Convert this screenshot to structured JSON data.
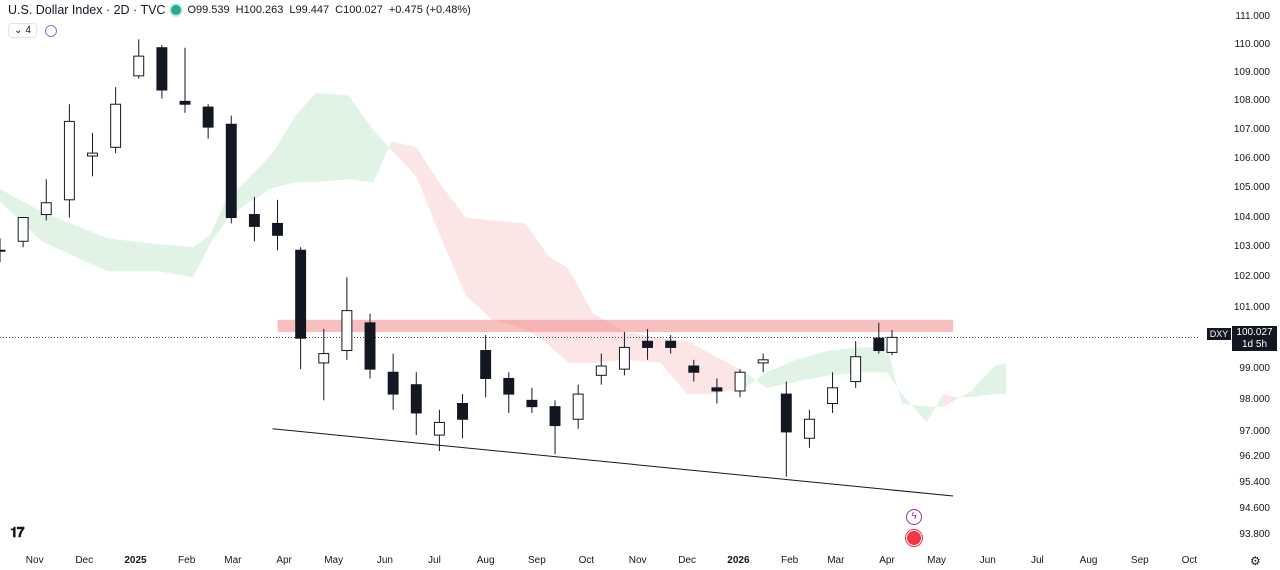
{
  "header": {
    "title": "U.S. Dollar Index · 2D · TVC",
    "open": "O99.539",
    "high": "H100.263",
    "low": "L99.447",
    "close": "C100.027",
    "change": "+0.475 (+0.48%)",
    "indicator_count": "4"
  },
  "price_tag": {
    "symbol": "DXY",
    "price": "100.027",
    "countdown": "1d 5h"
  },
  "colors": {
    "up": "#131722",
    "down": "#131722",
    "kumo_bull": "#d6efdc",
    "kumo_bear": "#fbdcdc",
    "zone": "#f28b8b",
    "accent": "#22ab94"
  },
  "icons": [
    "tradingview-logo-icon",
    "settings-gear-icon",
    "event-flash-icon",
    "us-flag-event-icon",
    "sync-icon",
    "chevron-down-icon"
  ],
  "chart_data": {
    "type": "candlestick",
    "y_axis": {
      "scale": "log",
      "ylim": [
        93.5,
        111.4
      ],
      "ticks": [
        "111.000",
        "110.000",
        "109.000",
        "108.000",
        "107.000",
        "106.000",
        "105.000",
        "104.000",
        "103.000",
        "102.000",
        "101.000",
        "100.027",
        "99.000",
        "98.000",
        "97.000",
        "96.200",
        "95.400",
        "94.600",
        "93.800"
      ]
    },
    "x_axis": {
      "ticks": [
        "Nov",
        "Dec",
        "2025",
        "Feb",
        "Mar",
        "Apr",
        "May",
        "Jun",
        "Jul",
        "Aug",
        "Sep",
        "Oct",
        "Nov",
        "Dec",
        "2026",
        "Feb",
        "Mar",
        "Apr",
        "May",
        "Jun",
        "Jul",
        "Aug",
        "Sep",
        "Oct"
      ],
      "range": [
        "2024-10-11",
        "2026-10-25"
      ]
    },
    "last_price": 100.027,
    "resistance_zone": {
      "from": 100.2,
      "to": 100.6,
      "start": "2025-03-28",
      "end": "2026-05-11"
    },
    "trendline": [
      {
        "date": "2025-03-25",
        "value": 97.1
      },
      {
        "date": "2026-05-11",
        "value": 95.0
      }
    ],
    "ichimoku_cloud": [
      [
        "2024-10-10",
        105.0,
        104.6
      ],
      [
        "2024-11-05",
        104.2,
        103.2
      ],
      [
        "2024-12-15",
        103.3,
        102.2
      ],
      [
        "2025-01-15",
        103.1,
        102.2
      ],
      [
        "2025-02-05",
        103.0,
        102.0
      ],
      [
        "2025-02-15",
        103.4,
        103.1
      ],
      [
        "2025-02-25",
        104.6,
        103.9
      ],
      [
        "2025-03-10",
        105.3,
        104.5
      ],
      [
        "2025-03-25",
        106.2,
        105.0
      ],
      [
        "2025-04-08",
        107.5,
        105.2
      ],
      [
        "2025-04-20",
        108.3,
        105.2
      ],
      [
        "2025-05-10",
        108.2,
        105.3
      ],
      [
        "2025-05-25",
        107.0,
        105.2
      ],
      [
        "2025-06-05",
        106.3,
        106.6
      ],
      [
        "2025-06-20",
        105.4,
        106.4
      ],
      [
        "2025-07-05",
        103.3,
        105.1
      ],
      [
        "2025-07-20",
        101.4,
        104.0
      ],
      [
        "2025-08-05",
        100.6,
        103.9
      ],
      [
        "2025-08-25",
        100.3,
        103.8
      ],
      [
        "2025-09-08",
        99.8,
        102.7
      ],
      [
        "2025-09-20",
        99.2,
        102.3
      ],
      [
        "2025-10-05",
        99.2,
        100.8
      ],
      [
        "2025-10-25",
        99.3,
        100.2
      ],
      [
        "2025-11-15",
        99.2,
        100.0
      ],
      [
        "2025-12-01",
        98.2,
        99.9
      ],
      [
        "2025-12-15",
        98.2,
        99.5
      ],
      [
        "2026-01-05",
        98.4,
        98.9
      ],
      [
        "2026-01-18",
        98.9,
        98.4
      ],
      [
        "2026-02-05",
        99.3,
        98.6
      ],
      [
        "2026-02-25",
        99.6,
        98.8
      ],
      [
        "2026-03-15",
        99.7,
        98.9
      ],
      [
        "2026-04-01",
        99.7,
        98.9
      ],
      [
        "2026-04-10",
        97.9,
        98.2
      ],
      [
        "2026-04-25",
        97.8,
        97.3
      ],
      [
        "2026-05-05",
        97.8,
        98.2
      ],
      [
        "2026-05-12",
        98.0,
        98.1
      ],
      [
        "2026-05-22",
        98.3,
        98.1
      ],
      [
        "2026-06-05",
        99.1,
        98.2
      ],
      [
        "2026-06-12",
        99.2,
        98.2
      ]
    ],
    "candles_2d": [
      [
        "2024-10-11",
        102.9,
        103.3,
        102.5,
        102.9
      ],
      [
        "2024-10-25",
        103.2,
        104.0,
        103.0,
        104.0
      ],
      [
        "2024-11-08",
        104.1,
        105.3,
        103.9,
        104.5
      ],
      [
        "2024-11-22",
        104.6,
        107.9,
        104.0,
        107.3
      ],
      [
        "2024-12-06",
        106.1,
        106.9,
        105.4,
        106.2
      ],
      [
        "2024-12-20",
        106.4,
        108.5,
        106.2,
        107.9
      ],
      [
        "2025-01-03",
        108.9,
        110.2,
        108.8,
        109.6
      ],
      [
        "2025-01-17",
        109.9,
        110.0,
        108.1,
        108.4
      ],
      [
        "2025-01-31",
        108.0,
        109.9,
        107.6,
        107.9
      ],
      [
        "2025-02-14",
        107.8,
        107.9,
        106.7,
        107.1
      ],
      [
        "2025-02-28",
        107.2,
        107.5,
        103.8,
        104.0
      ],
      [
        "2025-03-14",
        104.1,
        104.7,
        103.2,
        103.7
      ],
      [
        "2025-03-28",
        103.8,
        104.6,
        102.9,
        103.4
      ],
      [
        "2025-04-11",
        102.9,
        103.0,
        99.0,
        100.0
      ],
      [
        "2025-04-25",
        99.2,
        100.3,
        98.0,
        99.5
      ],
      [
        "2025-05-09",
        99.6,
        102.0,
        99.3,
        100.9
      ],
      [
        "2025-05-23",
        100.5,
        100.8,
        98.7,
        99.0
      ],
      [
        "2025-06-06",
        98.9,
        99.5,
        97.7,
        98.2
      ],
      [
        "2025-06-20",
        98.5,
        98.9,
        96.9,
        97.6
      ],
      [
        "2025-07-04",
        96.9,
        97.7,
        96.4,
        97.3
      ],
      [
        "2025-07-18",
        97.9,
        98.2,
        96.8,
        97.4
      ],
      [
        "2025-08-01",
        99.6,
        100.1,
        98.1,
        98.7
      ],
      [
        "2025-08-15",
        98.7,
        98.9,
        97.6,
        98.2
      ],
      [
        "2025-08-29",
        98.0,
        98.4,
        97.6,
        97.8
      ],
      [
        "2025-09-12",
        97.8,
        98.0,
        96.3,
        97.2
      ],
      [
        "2025-09-26",
        97.4,
        98.5,
        97.1,
        98.2
      ],
      [
        "2025-10-10",
        98.8,
        99.5,
        98.5,
        99.1
      ],
      [
        "2025-10-24",
        99.0,
        100.2,
        98.8,
        99.7
      ],
      [
        "2025-11-07",
        99.9,
        100.3,
        99.3,
        99.7
      ],
      [
        "2025-11-21",
        99.9,
        100.1,
        99.5,
        99.7
      ],
      [
        "2025-12-05",
        99.1,
        99.3,
        98.6,
        98.9
      ],
      [
        "2025-12-19",
        98.4,
        98.7,
        97.9,
        98.3
      ],
      [
        "2026-01-02",
        98.3,
        99.0,
        98.1,
        98.9
      ],
      [
        "2026-01-16",
        99.2,
        99.5,
        98.9,
        99.3
      ],
      [
        "2026-01-30",
        98.2,
        98.6,
        95.6,
        97.0
      ],
      [
        "2026-02-13",
        96.8,
        97.7,
        96.5,
        97.4
      ],
      [
        "2026-02-27",
        97.9,
        98.9,
        97.6,
        98.4
      ],
      [
        "2026-03-13",
        98.6,
        99.9,
        98.4,
        99.4
      ],
      [
        "2026-03-27",
        100.0,
        100.5,
        99.5,
        99.6
      ],
      [
        "2026-04-04",
        99.539,
        100.263,
        99.447,
        100.027
      ]
    ]
  }
}
